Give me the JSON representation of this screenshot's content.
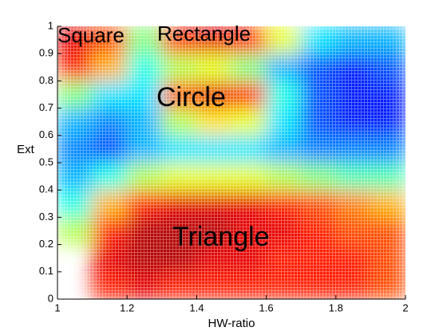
{
  "chart_data": {
    "type": "heatmap",
    "colormap": "jet",
    "x_label": "HW-ratio",
    "y_label": "Ext",
    "annotations": [
      "Square",
      "Rectangle",
      "Circle",
      "Triangle"
    ],
    "xlim": [
      1,
      2
    ],
    "ylim": [
      0,
      1
    ],
    "xticks": [
      1,
      1.2,
      1.4,
      1.6,
      1.8,
      2
    ],
    "yticks": [
      0,
      0.1,
      0.2,
      0.3,
      0.4,
      0.5,
      0.6,
      0.7,
      0.8,
      0.9,
      1
    ],
    "x": [
      1.05,
      1.15,
      1.25,
      1.35,
      1.45,
      1.55,
      1.65,
      1.75,
      1.85,
      1.95
    ],
    "y": [
      0.05,
      0.15,
      0.25,
      0.35,
      0.45,
      0.55,
      0.65,
      0.75,
      0.85,
      0.95
    ],
    "z": [
      [
        null,
        0.85,
        0.9,
        0.85,
        0.85,
        0.85,
        0.85,
        0.85,
        0.85,
        0.8
      ],
      [
        null,
        0.9,
        0.95,
        0.95,
        0.9,
        0.9,
        0.85,
        0.85,
        0.85,
        0.8
      ],
      [
        0.55,
        0.85,
        0.95,
        0.95,
        0.95,
        0.9,
        0.9,
        0.85,
        0.8,
        0.8
      ],
      [
        0.4,
        0.7,
        0.85,
        0.9,
        0.9,
        0.9,
        0.85,
        0.8,
        0.75,
        0.7
      ],
      [
        0.3,
        0.4,
        0.55,
        0.6,
        0.6,
        0.6,
        0.55,
        0.5,
        0.45,
        0.45
      ],
      [
        0.25,
        0.2,
        0.3,
        0.35,
        0.35,
        0.35,
        0.3,
        0.25,
        0.25,
        0.25
      ],
      [
        0.3,
        0.25,
        0.3,
        0.55,
        0.65,
        0.6,
        0.35,
        0.2,
        0.15,
        0.15
      ],
      [
        0.5,
        0.35,
        0.35,
        0.8,
        0.9,
        0.85,
        0.4,
        0.2,
        0.15,
        0.15
      ],
      [
        0.85,
        0.7,
        0.4,
        0.55,
        0.6,
        0.5,
        0.3,
        0.2,
        0.15,
        0.2
      ],
      [
        0.9,
        0.8,
        0.5,
        0.85,
        0.9,
        0.85,
        0.6,
        0.35,
        0.3,
        0.3
      ]
    ]
  }
}
